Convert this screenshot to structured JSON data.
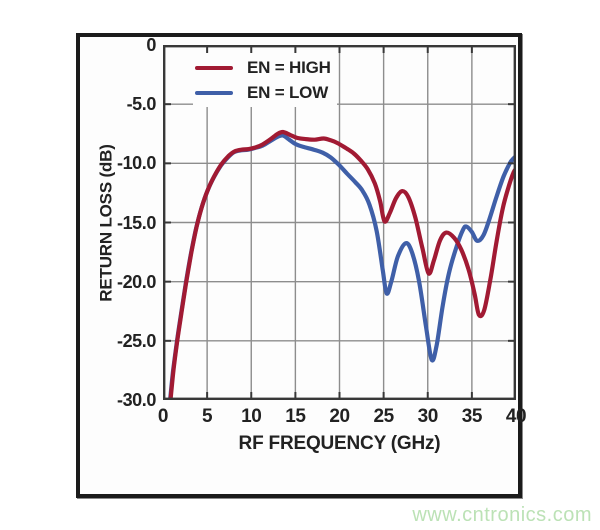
{
  "watermark": {
    "text": "www.cntronics.com",
    "color": "#bce2b6"
  },
  "chart_data": {
    "type": "line",
    "title": "",
    "xlabel": "RF FREQUENCY (GHz)",
    "ylabel": "RETURN LOSS (dB)",
    "xlim": [
      0,
      40
    ],
    "ylim": [
      -30,
      0
    ],
    "grid": true,
    "legend_position": "top-left-inside",
    "grid_color": "#8d8d8d",
    "frame_color": "#383838",
    "x_ticks": [
      0,
      5,
      10,
      15,
      20,
      25,
      30,
      35,
      40
    ],
    "x_tick_labels": [
      "0",
      "5",
      "10",
      "15",
      "20",
      "25",
      "30",
      "35",
      "40"
    ],
    "y_ticks": [
      0,
      -5,
      -10,
      -15,
      -20,
      -25,
      -30
    ],
    "y_tick_labels": [
      "0",
      "-5.0",
      "-10.0",
      "-15.0",
      "-20.0",
      "-25.0",
      "-30.0"
    ],
    "series": [
      {
        "name": "EN = HIGH",
        "color": "#a11a33",
        "points": [
          [
            0.85,
            -30
          ],
          [
            1.2,
            -27.4
          ],
          [
            1.6,
            -25.1
          ],
          [
            2.1,
            -22.6
          ],
          [
            2.6,
            -20.2
          ],
          [
            3.2,
            -17.6
          ],
          [
            3.8,
            -15.4
          ],
          [
            4.4,
            -13.7
          ],
          [
            5.1,
            -12.2
          ],
          [
            5.8,
            -11.1
          ],
          [
            6.6,
            -10.1
          ],
          [
            7.4,
            -9.4
          ],
          [
            8.1,
            -9.0
          ],
          [
            8.9,
            -8.85
          ],
          [
            9.7,
            -8.8
          ],
          [
            10.5,
            -8.65
          ],
          [
            11.3,
            -8.4
          ],
          [
            12.2,
            -7.95
          ],
          [
            13.0,
            -7.5
          ],
          [
            13.6,
            -7.35
          ],
          [
            14.4,
            -7.6
          ],
          [
            15.2,
            -7.85
          ],
          [
            16.2,
            -7.95
          ],
          [
            17.2,
            -8.0
          ],
          [
            18.2,
            -7.9
          ],
          [
            19.0,
            -8.05
          ],
          [
            19.8,
            -8.3
          ],
          [
            20.8,
            -8.75
          ],
          [
            21.6,
            -9.15
          ],
          [
            22.4,
            -9.75
          ],
          [
            23.2,
            -10.5
          ],
          [
            24.0,
            -11.7
          ],
          [
            24.6,
            -13.2
          ],
          [
            25.1,
            -14.9
          ],
          [
            25.7,
            -14.2
          ],
          [
            26.4,
            -12.95
          ],
          [
            27.1,
            -12.35
          ],
          [
            27.8,
            -12.85
          ],
          [
            28.6,
            -14.6
          ],
          [
            29.4,
            -17.2
          ],
          [
            30.1,
            -19.3
          ],
          [
            30.7,
            -18.2
          ],
          [
            31.4,
            -16.5
          ],
          [
            32.1,
            -15.85
          ],
          [
            33.0,
            -16.3
          ],
          [
            33.8,
            -17.3
          ],
          [
            34.6,
            -18.9
          ],
          [
            35.3,
            -21.0
          ],
          [
            35.8,
            -22.8
          ],
          [
            36.4,
            -22.4
          ],
          [
            37.1,
            -19.8
          ],
          [
            37.8,
            -16.6
          ],
          [
            38.5,
            -13.8
          ],
          [
            39.2,
            -11.9
          ],
          [
            39.7,
            -10.8
          ],
          [
            40,
            -10.45
          ]
        ]
      },
      {
        "name": "EN = LOW",
        "color": "#3f5fa8",
        "points": [
          [
            0.8,
            -30
          ],
          [
            1.15,
            -27.5
          ],
          [
            1.55,
            -25.2
          ],
          [
            2.05,
            -22.7
          ],
          [
            2.55,
            -20.3
          ],
          [
            3.15,
            -17.7
          ],
          [
            3.75,
            -15.5
          ],
          [
            4.35,
            -13.8
          ],
          [
            5.05,
            -12.3
          ],
          [
            5.75,
            -11.2
          ],
          [
            6.55,
            -10.2
          ],
          [
            7.35,
            -9.5
          ],
          [
            8.05,
            -9.05
          ],
          [
            8.85,
            -8.9
          ],
          [
            9.65,
            -8.85
          ],
          [
            10.45,
            -8.7
          ],
          [
            11.3,
            -8.5
          ],
          [
            12.2,
            -8.1
          ],
          [
            13.0,
            -7.75
          ],
          [
            13.6,
            -7.65
          ],
          [
            14.3,
            -8.0
          ],
          [
            15.1,
            -8.4
          ],
          [
            16.1,
            -8.65
          ],
          [
            17.1,
            -8.85
          ],
          [
            18.1,
            -9.1
          ],
          [
            19.0,
            -9.5
          ],
          [
            19.9,
            -10.1
          ],
          [
            20.9,
            -10.9
          ],
          [
            21.8,
            -11.6
          ],
          [
            22.6,
            -12.3
          ],
          [
            23.4,
            -13.5
          ],
          [
            24.2,
            -15.7
          ],
          [
            24.9,
            -19.0
          ],
          [
            25.35,
            -21.0
          ],
          [
            25.9,
            -19.9
          ],
          [
            26.6,
            -17.9
          ],
          [
            27.5,
            -16.75
          ],
          [
            28.2,
            -17.5
          ],
          [
            29.0,
            -19.9
          ],
          [
            29.8,
            -23.8
          ],
          [
            30.45,
            -26.6
          ],
          [
            31.0,
            -25.4
          ],
          [
            31.7,
            -22.0
          ],
          [
            32.4,
            -19.3
          ],
          [
            33.2,
            -17.2
          ],
          [
            34.0,
            -15.6
          ],
          [
            34.4,
            -15.35
          ],
          [
            35.0,
            -15.8
          ],
          [
            35.6,
            -16.55
          ],
          [
            36.3,
            -16.1
          ],
          [
            37.0,
            -14.7
          ],
          [
            37.8,
            -12.8
          ],
          [
            38.6,
            -11.1
          ],
          [
            39.3,
            -10.0
          ],
          [
            39.7,
            -9.6
          ],
          [
            40,
            -9.4
          ]
        ]
      }
    ]
  }
}
